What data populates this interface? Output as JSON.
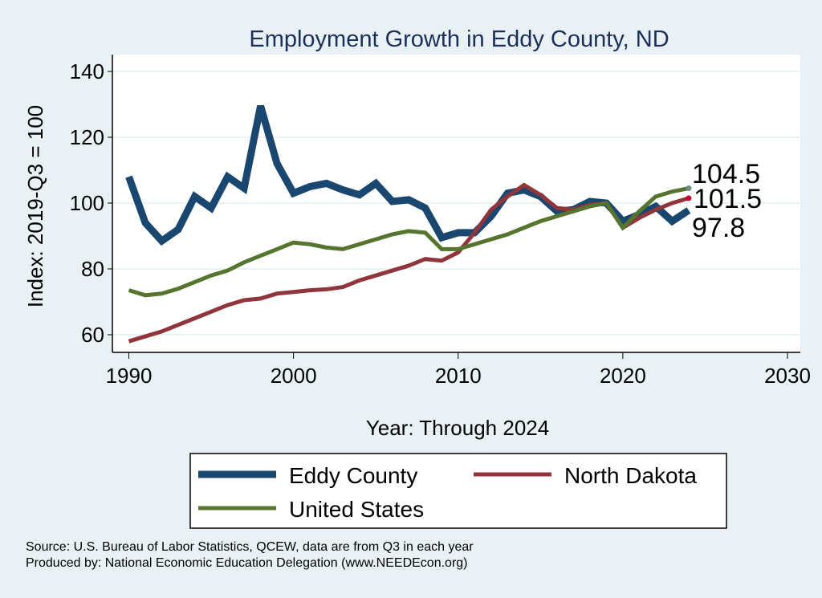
{
  "chart_data": {
    "type": "line",
    "title": "Employment Growth in Eddy County, ND",
    "xlabel": "Year: Through 2024",
    "ylabel": "Index: 2019-Q3 = 100",
    "xlim": [
      1990,
      2030
    ],
    "ylim": [
      55,
      145
    ],
    "xticks": [
      1990,
      2000,
      2010,
      2020,
      2030
    ],
    "yticks": [
      60,
      80,
      100,
      120,
      140
    ],
    "grid": true,
    "legend_position": "bottom",
    "x": [
      1990,
      1991,
      1992,
      1993,
      1994,
      1995,
      1996,
      1997,
      1998,
      1999,
      2000,
      2001,
      2002,
      2003,
      2004,
      2005,
      2006,
      2007,
      2008,
      2009,
      2010,
      2011,
      2012,
      2013,
      2014,
      2015,
      2016,
      2017,
      2018,
      2019,
      2020,
      2021,
      2022,
      2023,
      2024
    ],
    "series": [
      {
        "name": "Eddy  County",
        "color": "#1a476f",
        "width": 9,
        "end_label": "97.8",
        "values": [
          108,
          94,
          88.5,
          92,
          102,
          98.5,
          108,
          104.5,
          129.5,
          112,
          103,
          105,
          106,
          104,
          102.5,
          106,
          100.5,
          101,
          98.5,
          89.5,
          91,
          91,
          96,
          103,
          104,
          102,
          97.5,
          98,
          100.5,
          100,
          94.5,
          96.5,
          99,
          94.5,
          97.8
        ]
      },
      {
        "name": "North Dakota",
        "color": "#90353b",
        "width": 5,
        "end_label": "101.5",
        "end_dot": "#c10534",
        "values": [
          58,
          59.5,
          61,
          63,
          65,
          67,
          69,
          70.5,
          71,
          72.5,
          73,
          73.5,
          73.8,
          74.5,
          76.5,
          78,
          79.5,
          81,
          83,
          82.5,
          85,
          91,
          98,
          102,
          105.5,
          102.5,
          98.5,
          98,
          99.5,
          100,
          92.5,
          95.5,
          98,
          100,
          101.5
        ]
      },
      {
        "name": "United States",
        "color": "#55752f",
        "width": 5,
        "end_label": "104.5",
        "end_dot": "#6e8e84",
        "values": [
          73.5,
          72,
          72.5,
          74,
          76,
          78,
          79.5,
          82,
          84,
          86,
          88,
          87.5,
          86.5,
          86,
          87.5,
          89,
          90.5,
          91.5,
          91,
          86,
          86,
          87.5,
          89,
          90.5,
          92.5,
          94.5,
          96,
          97.5,
          99,
          100,
          92.5,
          97.5,
          102,
          103.5,
          104.5
        ]
      }
    ]
  },
  "notes": {
    "source": "Source: U.S. Bureau of Labor Statistics, QCEW, data are from Q3 in each year",
    "produced": "Produced by: National Economic Education Delegation (www.NEEDEcon.org)"
  }
}
